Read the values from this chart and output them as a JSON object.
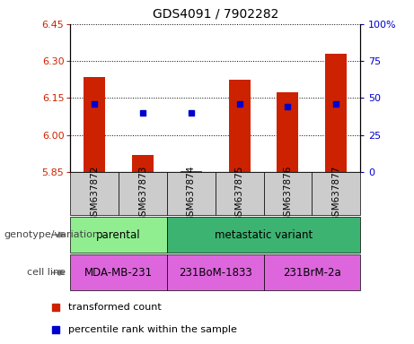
{
  "title": "GDS4091 / 7902282",
  "samples": [
    "GSM637872",
    "GSM637873",
    "GSM637874",
    "GSM637875",
    "GSM637876",
    "GSM637877"
  ],
  "red_values": [
    6.235,
    5.92,
    5.855,
    6.225,
    6.175,
    6.33
  ],
  "blue_values": [
    6.125,
    6.09,
    6.09,
    6.125,
    6.115,
    6.125
  ],
  "ylim_left": [
    5.85,
    6.45
  ],
  "ylim_right": [
    0,
    100
  ],
  "yticks_left": [
    5.85,
    6.0,
    6.15,
    6.3,
    6.45
  ],
  "yticks_right": [
    0,
    25,
    50,
    75,
    100
  ],
  "ytick_labels_right": [
    "0",
    "25",
    "50",
    "75",
    "100%"
  ],
  "bar_bottom": 5.85,
  "bar_width": 0.45,
  "red_color": "#cc2200",
  "blue_color": "#0000cc",
  "sample_box_color": "#cccccc",
  "parental_color": "#90EE90",
  "metastatic_color": "#3CB371",
  "cell_line_color": "#DD66DD",
  "geno_groups": [
    {
      "label": "parental",
      "start": 0,
      "end": 1,
      "color": "#90EE90"
    },
    {
      "label": "metastatic variant",
      "start": 2,
      "end": 5,
      "color": "#3CB371"
    }
  ],
  "cell_groups": [
    {
      "label": "MDA-MB-231",
      "start": 0,
      "end": 1
    },
    {
      "label": "231BoM-1833",
      "start": 2,
      "end": 3
    },
    {
      "label": "231BrM-2a",
      "start": 4,
      "end": 5
    }
  ],
  "legend_red": "transformed count",
  "legend_blue": "percentile rank within the sample",
  "label_genotype": "genotype/variation",
  "label_cell": "cell line"
}
